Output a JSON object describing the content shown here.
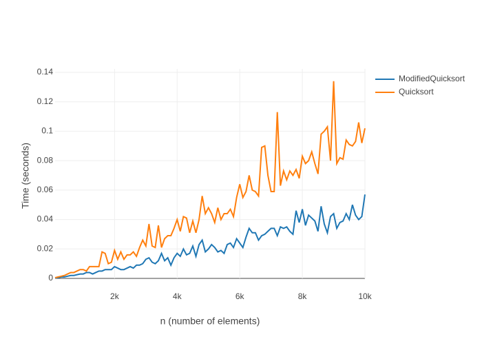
{
  "chart_data": {
    "type": "line",
    "x_label": "n (number of elements)",
    "y_label": "Time (seconds)",
    "x": [
      100,
      200,
      300,
      400,
      500,
      600,
      700,
      800,
      900,
      1000,
      1100,
      1200,
      1300,
      1400,
      1500,
      1600,
      1700,
      1800,
      1900,
      2000,
      2100,
      2200,
      2300,
      2400,
      2500,
      2600,
      2700,
      2800,
      2900,
      3000,
      3100,
      3200,
      3300,
      3400,
      3500,
      3600,
      3700,
      3800,
      3900,
      4000,
      4100,
      4200,
      4300,
      4400,
      4500,
      4600,
      4700,
      4800,
      4900,
      5000,
      5100,
      5200,
      5300,
      5400,
      5500,
      5600,
      5700,
      5800,
      5900,
      6000,
      6100,
      6200,
      6300,
      6400,
      6500,
      6600,
      6700,
      6800,
      6900,
      7000,
      7100,
      7200,
      7300,
      7400,
      7500,
      7600,
      7700,
      7800,
      7900,
      8000,
      8100,
      8200,
      8300,
      8400,
      8500,
      8600,
      8700,
      8800,
      8900,
      9000,
      9100,
      9200,
      9300,
      9400,
      9500,
      9600,
      9700,
      9800,
      9900,
      10000
    ],
    "series": [
      {
        "name": "ModifiedQuicksort",
        "color": "#1f77b4",
        "values": [
          0.0003,
          0.0005,
          0.001,
          0.001,
          0.0015,
          0.002,
          0.002,
          0.0025,
          0.003,
          0.003,
          0.004,
          0.004,
          0.003,
          0.004,
          0.005,
          0.005,
          0.006,
          0.006,
          0.006,
          0.008,
          0.007,
          0.006,
          0.006,
          0.007,
          0.008,
          0.007,
          0.009,
          0.009,
          0.01,
          0.013,
          0.014,
          0.011,
          0.01,
          0.012,
          0.017,
          0.012,
          0.014,
          0.009,
          0.014,
          0.017,
          0.015,
          0.02,
          0.016,
          0.017,
          0.022,
          0.015,
          0.023,
          0.026,
          0.018,
          0.02,
          0.023,
          0.021,
          0.018,
          0.019,
          0.017,
          0.023,
          0.024,
          0.021,
          0.027,
          0.024,
          0.021,
          0.028,
          0.034,
          0.031,
          0.031,
          0.026,
          0.029,
          0.03,
          0.032,
          0.034,
          0.034,
          0.029,
          0.035,
          0.034,
          0.035,
          0.032,
          0.03,
          0.046,
          0.038,
          0.047,
          0.036,
          0.043,
          0.041,
          0.039,
          0.032,
          0.049,
          0.037,
          0.031,
          0.042,
          0.044,
          0.034,
          0.038,
          0.039,
          0.044,
          0.04,
          0.05,
          0.043,
          0.04,
          0.042,
          0.057
        ]
      },
      {
        "name": "Quicksort",
        "color": "#ff7f0e",
        "values": [
          0.0005,
          0.001,
          0.0015,
          0.002,
          0.003,
          0.004,
          0.004,
          0.005,
          0.006,
          0.006,
          0.005,
          0.008,
          0.008,
          0.008,
          0.008,
          0.018,
          0.017,
          0.01,
          0.011,
          0.019,
          0.013,
          0.018,
          0.013,
          0.016,
          0.016,
          0.018,
          0.015,
          0.021,
          0.026,
          0.022,
          0.037,
          0.022,
          0.021,
          0.036,
          0.021,
          0.027,
          0.029,
          0.029,
          0.034,
          0.04,
          0.032,
          0.042,
          0.041,
          0.031,
          0.039,
          0.031,
          0.04,
          0.056,
          0.044,
          0.048,
          0.044,
          0.038,
          0.048,
          0.04,
          0.044,
          0.044,
          0.047,
          0.042,
          0.055,
          0.064,
          0.055,
          0.059,
          0.07,
          0.06,
          0.059,
          0.056,
          0.089,
          0.09,
          0.07,
          0.059,
          0.059,
          0.113,
          0.063,
          0.073,
          0.067,
          0.073,
          0.07,
          0.074,
          0.068,
          0.083,
          0.078,
          0.08,
          0.086,
          0.078,
          0.071,
          0.098,
          0.1,
          0.103,
          0.08,
          0.134,
          0.078,
          0.082,
          0.081,
          0.094,
          0.091,
          0.09,
          0.093,
          0.106,
          0.092,
          0.102
        ]
      }
    ],
    "xlim": [
      100,
      10000
    ],
    "xticks": [
      {
        "value": 2000,
        "label": "2k"
      },
      {
        "value": 4000,
        "label": "4k"
      },
      {
        "value": 6000,
        "label": "6k"
      },
      {
        "value": 8000,
        "label": "8k"
      },
      {
        "value": 10000,
        "label": "10k"
      }
    ],
    "ylim": [
      0,
      0.14
    ],
    "yticks": [
      0,
      0.02,
      0.04,
      0.06,
      0.08,
      0.1,
      0.12,
      0.14
    ],
    "grid": true
  }
}
